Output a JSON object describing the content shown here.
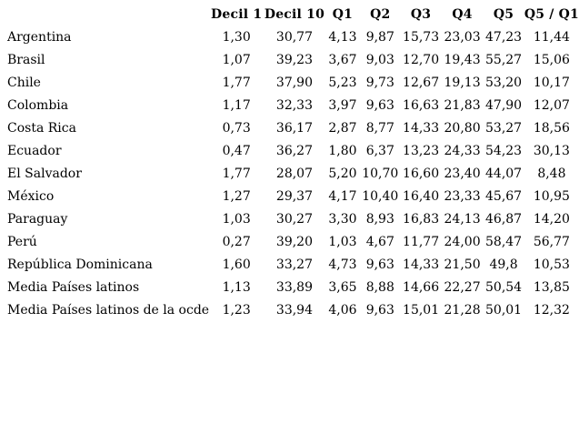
{
  "table": {
    "columns": [
      "",
      "Decil 1",
      "Decil 10",
      "Q1",
      "Q2",
      "Q3",
      "Q4",
      "Q5",
      "Q5 / Q1"
    ],
    "rows": [
      {
        "label": "Argentina",
        "values": [
          "1,30",
          "30,77",
          "4,13",
          "9,87",
          "15,73",
          "23,03",
          "47,23",
          "11,44"
        ]
      },
      {
        "label": "Brasil",
        "values": [
          "1,07",
          "39,23",
          "3,67",
          "9,03",
          "12,70",
          "19,43",
          "55,27",
          "15,06"
        ]
      },
      {
        "label": "Chile",
        "values": [
          "1,77",
          "37,90",
          "5,23",
          "9,73",
          "12,67",
          "19,13",
          "53,20",
          "10,17"
        ]
      },
      {
        "label": "Colombia",
        "values": [
          "1,17",
          "32,33",
          "3,97",
          "9,63",
          "16,63",
          "21,83",
          "47,90",
          "12,07"
        ]
      },
      {
        "label": "Costa Rica",
        "values": [
          "0,73",
          "36,17",
          "2,87",
          "8,77",
          "14,33",
          "20,80",
          "53,27",
          "18,56"
        ]
      },
      {
        "label": "Ecuador",
        "values": [
          "0,47",
          "36,27",
          "1,80",
          "6,37",
          "13,23",
          "24,33",
          "54,23",
          "30,13"
        ]
      },
      {
        "label": "El Salvador",
        "values": [
          "1,77",
          "28,07",
          "5,20",
          "10,70",
          "16,60",
          "23,40",
          "44,07",
          "8,48"
        ]
      },
      {
        "label": "México",
        "values": [
          "1,27",
          "29,37",
          "4,17",
          "10,40",
          "16,40",
          "23,33",
          "45,67",
          "10,95"
        ]
      },
      {
        "label": "Paraguay",
        "values": [
          "1,03",
          "30,27",
          "3,30",
          "8,93",
          "16,83",
          "24,13",
          "46,87",
          "14,20"
        ]
      },
      {
        "label": "Perú",
        "values": [
          "0,27",
          "39,20",
          "1,03",
          "4,67",
          "11,77",
          "24,00",
          "58,47",
          "56,77"
        ]
      },
      {
        "label": "República Dominicana",
        "values": [
          "1,60",
          "33,27",
          "4,73",
          "9,63",
          "14,33",
          "21,50",
          "49,8",
          "10,53"
        ]
      },
      {
        "label": "Media Países latinos",
        "values": [
          "1,13",
          "33,89",
          "3,65",
          "8,88",
          "14,66",
          "22,27",
          "50,54",
          "13,85"
        ]
      },
      {
        "label": "Media Países latinos de la ocde",
        "values": [
          "1,23",
          "33,94",
          "4,06",
          "9,63",
          "15,01",
          "21,28",
          "50,01",
          "12,32"
        ]
      }
    ]
  }
}
